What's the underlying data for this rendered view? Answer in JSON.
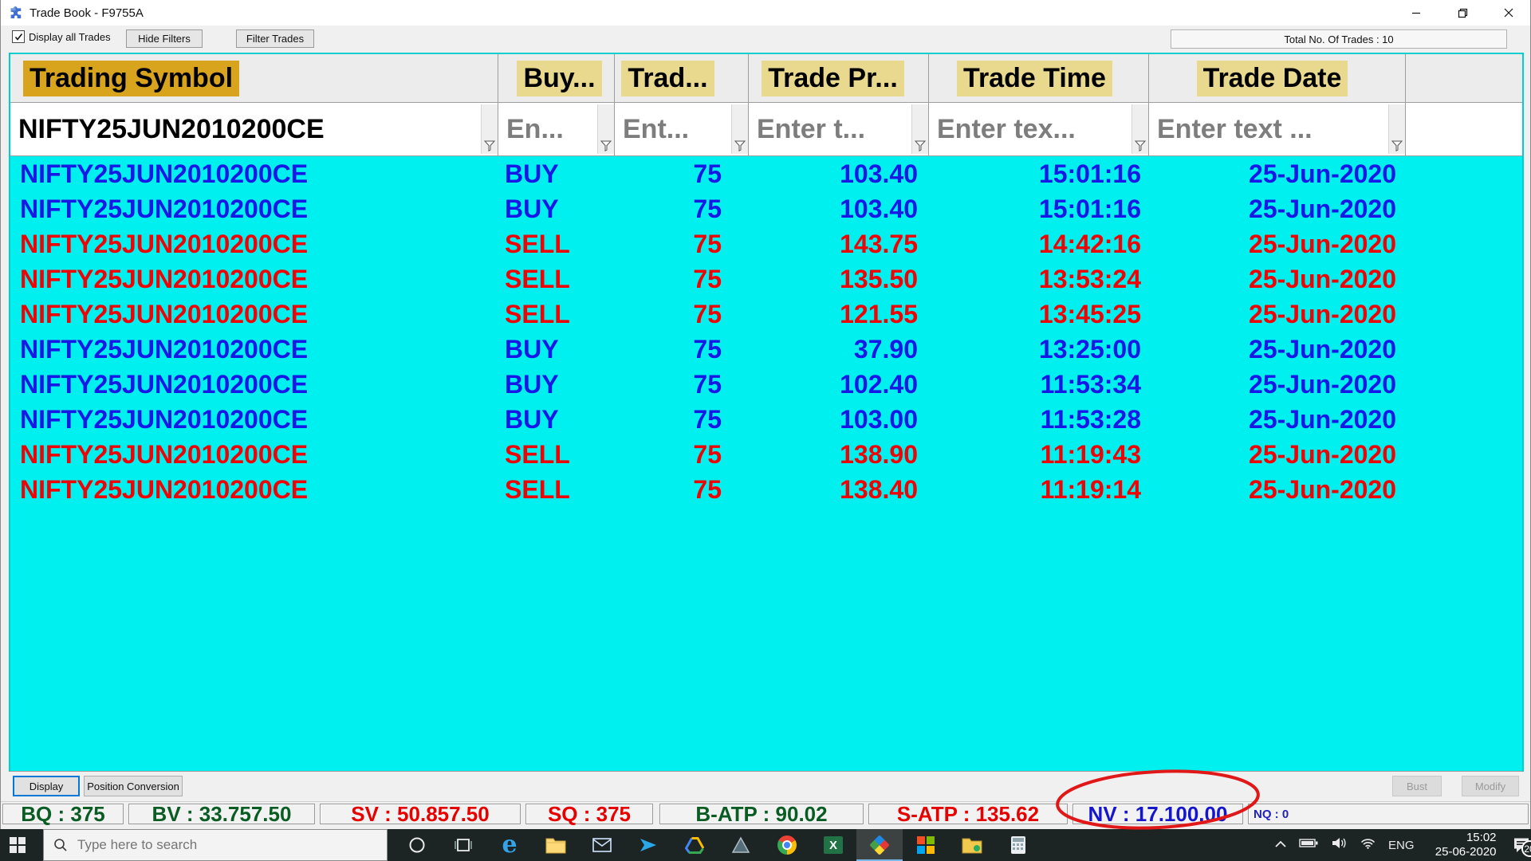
{
  "window": {
    "title": "Trade Book - F9755A",
    "icon": "puzzle-icon"
  },
  "toolbar": {
    "display_all_trades_label": "Display all Trades",
    "display_all_trades_checked": true,
    "hide_filters_label": "Hide Filters",
    "filter_trades_label": "Filter Trades",
    "total_trades_label": "Total No. Of Trades : 10"
  },
  "grid": {
    "columns": [
      {
        "key": "symbol",
        "header": "Trading Symbol",
        "header_highlight": "#d8a41e",
        "align": "left",
        "filter_text": "NIFTY25JUN2010200CE",
        "filter_entered": true
      },
      {
        "key": "side",
        "header": "Buy...",
        "header_highlight": "#e9d98e",
        "align": "center",
        "filter_text": "En...",
        "filter_entered": false
      },
      {
        "key": "qty",
        "header": "Trad...",
        "header_highlight": "#e9d98e",
        "align": "center",
        "filter_text": "Ent...",
        "filter_entered": false
      },
      {
        "key": "price",
        "header": "Trade Pr...",
        "header_highlight": "#e9d98e",
        "align": "center",
        "filter_text": "Enter t...",
        "filter_entered": false
      },
      {
        "key": "time",
        "header": "Trade Time",
        "header_highlight": "#e9d98e",
        "align": "center",
        "filter_text": "Enter tex...",
        "filter_entered": false
      },
      {
        "key": "date",
        "header": "Trade Date",
        "header_highlight": "#e9d98e",
        "align": "center",
        "filter_text": "Enter text ...",
        "filter_entered": false
      }
    ],
    "rows": [
      {
        "symbol": "NIFTY25JUN2010200CE",
        "side": "BUY",
        "qty": "75",
        "price": "103.40",
        "time": "15:01:16",
        "date": "25-Jun-2020"
      },
      {
        "symbol": "NIFTY25JUN2010200CE",
        "side": "BUY",
        "qty": "75",
        "price": "103.40",
        "time": "15:01:16",
        "date": "25-Jun-2020"
      },
      {
        "symbol": "NIFTY25JUN2010200CE",
        "side": "SELL",
        "qty": "75",
        "price": "143.75",
        "time": "14:42:16",
        "date": "25-Jun-2020"
      },
      {
        "symbol": "NIFTY25JUN2010200CE",
        "side": "SELL",
        "qty": "75",
        "price": "135.50",
        "time": "13:53:24",
        "date": "25-Jun-2020"
      },
      {
        "symbol": "NIFTY25JUN2010200CE",
        "side": "SELL",
        "qty": "75",
        "price": "121.55",
        "time": "13:45:25",
        "date": "25-Jun-2020"
      },
      {
        "symbol": "NIFTY25JUN2010200CE",
        "side": "BUY",
        "qty": "75",
        "price": "37.90",
        "time": "13:25:00",
        "date": "25-Jun-2020"
      },
      {
        "symbol": "NIFTY25JUN2010200CE",
        "side": "BUY",
        "qty": "75",
        "price": "102.40",
        "time": "11:53:34",
        "date": "25-Jun-2020"
      },
      {
        "symbol": "NIFTY25JUN2010200CE",
        "side": "BUY",
        "qty": "75",
        "price": "103.00",
        "time": "11:53:28",
        "date": "25-Jun-2020"
      },
      {
        "symbol": "NIFTY25JUN2010200CE",
        "side": "SELL",
        "qty": "75",
        "price": "138.90",
        "time": "11:19:43",
        "date": "25-Jun-2020"
      },
      {
        "symbol": "NIFTY25JUN2010200CE",
        "side": "SELL",
        "qty": "75",
        "price": "138.40",
        "time": "11:19:14",
        "date": "25-Jun-2020"
      }
    ],
    "buy_color": "#1818e6",
    "sell_color": "#ee0404",
    "body_bg": "#00f0f0"
  },
  "footer": {
    "display_label": "Display",
    "position_conversion_label": "Position Conversion",
    "bust_label": "Bust",
    "modify_label": "Modify"
  },
  "status_bar": {
    "segments": [
      {
        "text": "BQ : 375",
        "color": "#0a5c23"
      },
      {
        "text": "BV : 33.757.50",
        "color": "#0a5c23"
      },
      {
        "text": "SV : 50.857.50",
        "color": "#e60000"
      },
      {
        "text": "SQ : 375",
        "color": "#e60000"
      },
      {
        "text": "B-ATP : 90.02",
        "color": "#0a5c23"
      },
      {
        "text": "S-ATP : 135.62",
        "color": "#e60000"
      },
      {
        "text": "NV : 17.100.00",
        "color": "#1515cc",
        "circled": true
      },
      {
        "text": "NQ : 0",
        "color": "#2222bb",
        "small": true
      }
    ],
    "circle_color": "#e01818"
  },
  "taskbar": {
    "search_placeholder": "Type here to search",
    "apps": [
      "cortana-icon",
      "taskview-icon",
      "edge-icon",
      "explorer-icon",
      "mail-icon",
      "plane-icon",
      "drive-icon",
      "triangle-icon",
      "chrome-icon",
      "excel-icon",
      "trading-app-icon",
      "tiles-icon",
      "folder2-icon",
      "calculator-icon"
    ],
    "active_app": "trading-app-icon",
    "tray": {
      "language": "ENG",
      "time": "15:02",
      "date": "25-06-2020",
      "notification_badge": "20"
    }
  }
}
